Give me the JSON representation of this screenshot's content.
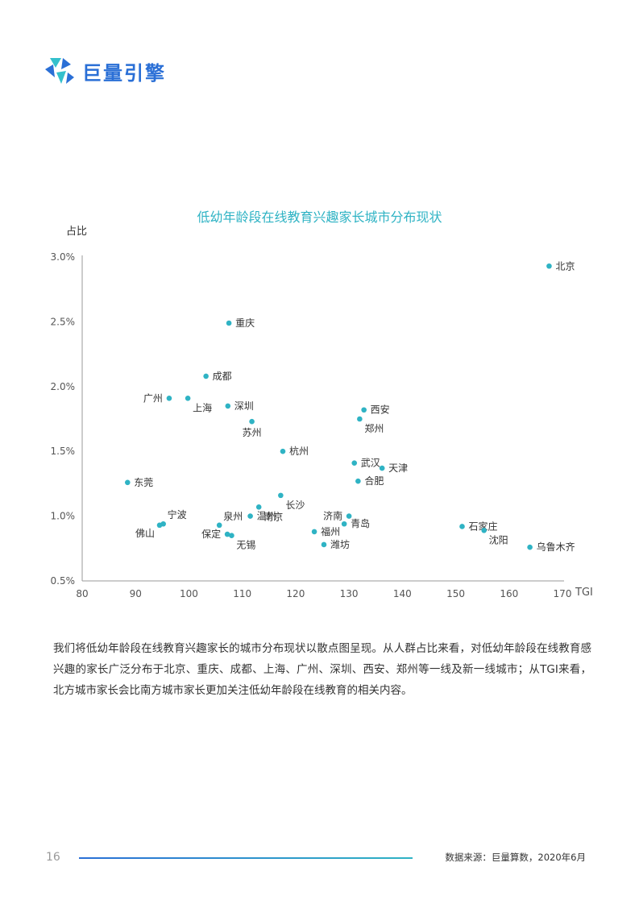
{
  "brand": {
    "name": "巨量引擎"
  },
  "chart_data": {
    "type": "scatter",
    "title": "低幼年龄段在线教育兴趣家长城市分布现状",
    "xlabel": "TGI",
    "ylabel": "占比",
    "xlim": [
      80,
      170
    ],
    "ylim": [
      0.5,
      3.0
    ],
    "x_ticks": [
      "80",
      "90",
      "100",
      "110",
      "120",
      "130",
      "140",
      "150",
      "160",
      "170"
    ],
    "y_ticks": [
      "0.5%",
      "1.0%",
      "1.5%",
      "2.0%",
      "2.5%",
      "3.0%"
    ],
    "grid": false,
    "point_color": "#2fb3c4",
    "points": [
      {
        "label": "北京",
        "x": 167.5,
        "y": 2.93,
        "pos": "right"
      },
      {
        "label": "重庆",
        "x": 107.5,
        "y": 2.49,
        "pos": "right"
      },
      {
        "label": "成都",
        "x": 103.2,
        "y": 2.08,
        "pos": "right"
      },
      {
        "label": "广州",
        "x": 96.3,
        "y": 1.91,
        "pos": "left"
      },
      {
        "label": "上海",
        "x": 99.8,
        "y": 1.91,
        "pos": "below-right"
      },
      {
        "label": "深圳",
        "x": 107.3,
        "y": 1.85,
        "pos": "right"
      },
      {
        "label": "苏州",
        "x": 111.8,
        "y": 1.73,
        "pos": "below"
      },
      {
        "label": "西安",
        "x": 132.8,
        "y": 1.82,
        "pos": "right"
      },
      {
        "label": "郑州",
        "x": 132.0,
        "y": 1.75,
        "pos": "below-right"
      },
      {
        "label": "杭州",
        "x": 117.6,
        "y": 1.5,
        "pos": "right"
      },
      {
        "label": "武汉",
        "x": 131.0,
        "y": 1.41,
        "pos": "right"
      },
      {
        "label": "天津",
        "x": 136.2,
        "y": 1.37,
        "pos": "right"
      },
      {
        "label": "合肥",
        "x": 131.7,
        "y": 1.27,
        "pos": "right"
      },
      {
        "label": "东莞",
        "x": 88.5,
        "y": 1.26,
        "pos": "right"
      },
      {
        "label": "长沙",
        "x": 117.2,
        "y": 1.16,
        "pos": "below-right"
      },
      {
        "label": "南京",
        "x": 113.1,
        "y": 1.07,
        "pos": "below-right"
      },
      {
        "label": "温州",
        "x": 111.5,
        "y": 1.0,
        "pos": "right"
      },
      {
        "label": "宁波",
        "x": 95.2,
        "y": 0.94,
        "pos": "above-right"
      },
      {
        "label": "佛山",
        "x": 94.5,
        "y": 0.93,
        "pos": "below-left"
      },
      {
        "label": "泉州",
        "x": 105.7,
        "y": 0.93,
        "pos": "above-right"
      },
      {
        "label": "保定",
        "x": 107.2,
        "y": 0.86,
        "pos": "left"
      },
      {
        "label": "无锡",
        "x": 108.0,
        "y": 0.85,
        "pos": "below-right"
      },
      {
        "label": "济南",
        "x": 130.0,
        "y": 1.0,
        "pos": "left"
      },
      {
        "label": "青岛",
        "x": 129.1,
        "y": 0.94,
        "pos": "right"
      },
      {
        "label": "福州",
        "x": 123.5,
        "y": 0.88,
        "pos": "right"
      },
      {
        "label": "潍坊",
        "x": 125.3,
        "y": 0.78,
        "pos": "right"
      },
      {
        "label": "石家庄",
        "x": 151.2,
        "y": 0.92,
        "pos": "right"
      },
      {
        "label": "沈阳",
        "x": 155.3,
        "y": 0.89,
        "pos": "below-right"
      },
      {
        "label": "乌鲁木齐",
        "x": 163.9,
        "y": 0.76,
        "pos": "right"
      }
    ]
  },
  "body_text": "我们将低幼年龄段在线教育兴趣家长的城市分布现状以散点图呈现。从人群占比来看，对低幼年龄段在线教育感兴趣的家长广泛分布于北京、重庆、成都、上海、广州、深圳、西安、郑州等一线及新一线城市；从TGI来看，北方城市家长会比南方城市家长更加关注低幼年龄段在线教育的相关内容。",
  "footer": {
    "page_number": "16",
    "source": "数据来源：巨量算数，2020年6月"
  }
}
